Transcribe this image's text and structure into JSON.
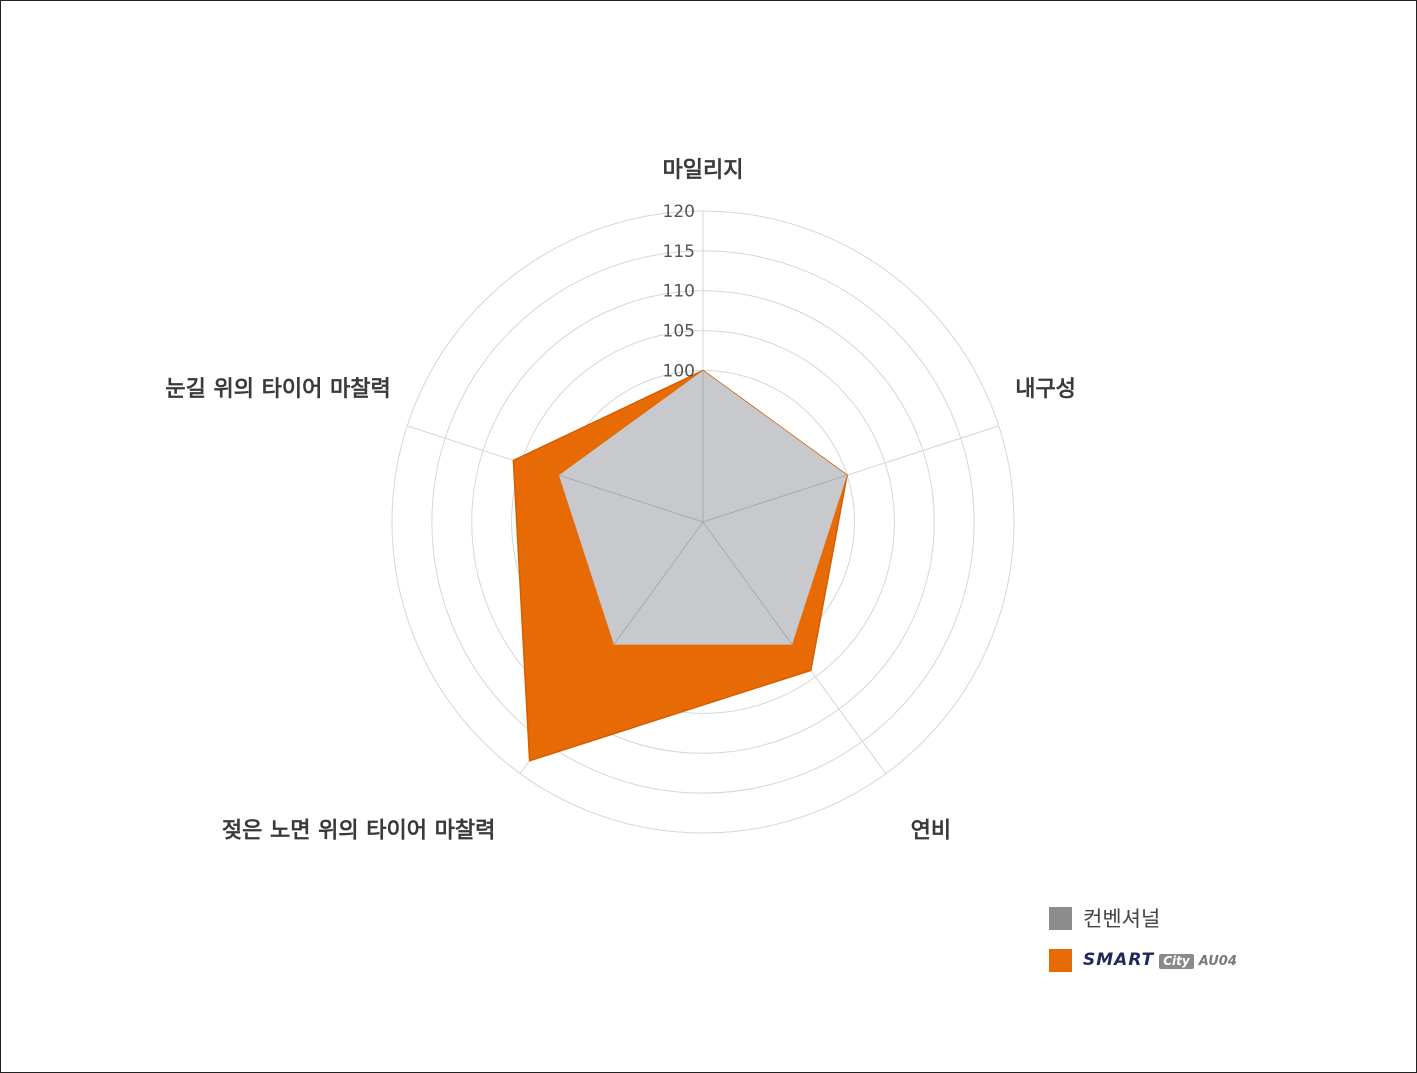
{
  "chart_data": {
    "type": "radar",
    "axes": [
      "마일리지",
      "내구성",
      "연비",
      "젖은 노면 위의 타이어 마찰력",
      "눈길 위의 타이어 마찰력"
    ],
    "ticks": [
      "100",
      "105",
      "110",
      "115",
      "120"
    ],
    "rlim": [
      81,
      120
    ],
    "grid": true,
    "legend_position": "bottom-right",
    "series": [
      {
        "name": "컨벤셔널",
        "color": "#c8c9cc",
        "values": [
          100,
          100,
          100,
          100,
          100
        ]
      },
      {
        "name": "SMART City AU04",
        "color": "#e86a05",
        "values": [
          100,
          100,
          104,
          118,
          106
        ]
      }
    ]
  },
  "legend": {
    "conventional_label": "컨벤셔널",
    "conventional_swatch": "#8c8c8c",
    "smart_swatch": "#e86a05",
    "smart_logo_main": "SMART",
    "smart_logo_badge": "City",
    "smart_logo_model": "AU04"
  }
}
